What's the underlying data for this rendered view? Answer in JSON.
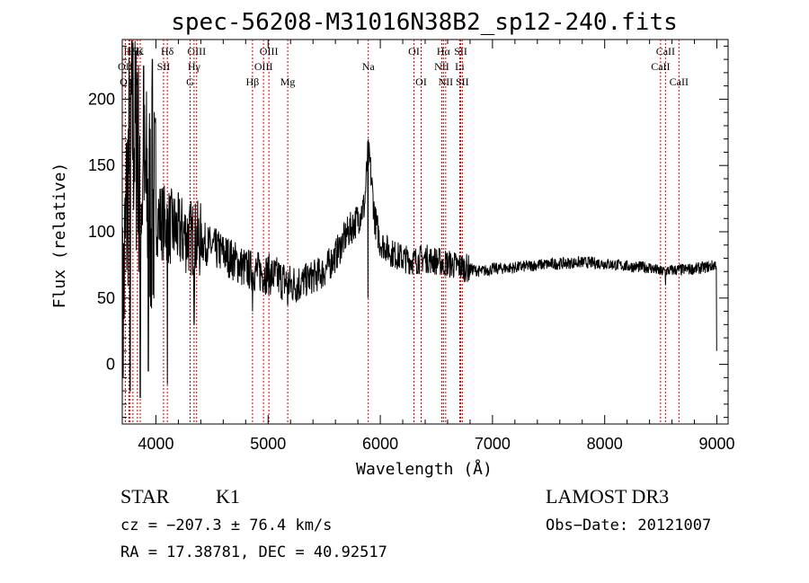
{
  "chart_data": {
    "type": "line",
    "title": "spec-56208-M31016N38B2_sp12-240.fits",
    "xlabel": "Wavelength (Å)",
    "ylabel": "Flux (relative)",
    "xlim": [
      3700,
      9100
    ],
    "ylim": [
      -45,
      245
    ],
    "xticks": [
      4000,
      5000,
      6000,
      7000,
      8000,
      9000
    ],
    "yticks": [
      0,
      50,
      100,
      150,
      200
    ],
    "line_color": "#000000",
    "marker_color": "#cc0000",
    "spectrum_nodes": [
      [
        3700,
        20
      ],
      [
        3740,
        120
      ],
      [
        3780,
        190
      ],
      [
        3820,
        170
      ],
      [
        3860,
        140
      ],
      [
        3900,
        130
      ],
      [
        3950,
        120
      ],
      [
        4000,
        112
      ],
      [
        4100,
        105
      ],
      [
        4200,
        100
      ],
      [
        4300,
        96
      ],
      [
        4400,
        93
      ],
      [
        4500,
        88
      ],
      [
        4600,
        84
      ],
      [
        4700,
        78
      ],
      [
        4800,
        72
      ],
      [
        4900,
        70
      ],
      [
        5000,
        68
      ],
      [
        5100,
        65
      ],
      [
        5200,
        60
      ],
      [
        5300,
        62
      ],
      [
        5400,
        66
      ],
      [
        5500,
        70
      ],
      [
        5600,
        82
      ],
      [
        5700,
        98
      ],
      [
        5800,
        110
      ],
      [
        5860,
        120
      ],
      [
        5890,
        160
      ],
      [
        5910,
        150
      ],
      [
        5950,
        110
      ],
      [
        6000,
        92
      ],
      [
        6100,
        84
      ],
      [
        6200,
        80
      ],
      [
        6300,
        78
      ],
      [
        6400,
        80
      ],
      [
        6500,
        78
      ],
      [
        6600,
        76
      ],
      [
        6700,
        74
      ],
      [
        6800,
        72
      ],
      [
        6900,
        70
      ],
      [
        7000,
        72
      ],
      [
        7200,
        73
      ],
      [
        7400,
        75
      ],
      [
        7600,
        76
      ],
      [
        7800,
        77
      ],
      [
        8000,
        76
      ],
      [
        8200,
        74
      ],
      [
        8400,
        73
      ],
      [
        8500,
        70
      ],
      [
        8600,
        71
      ],
      [
        8800,
        72
      ],
      [
        8950,
        74
      ],
      [
        9000,
        76
      ]
    ],
    "deep_features": [
      [
        3770,
        -20
      ],
      [
        3835,
        220
      ],
      [
        3860,
        -25
      ],
      [
        3890,
        225
      ],
      [
        3933,
        -5
      ],
      [
        3968,
        230
      ],
      [
        4102,
        -15
      ],
      [
        4340,
        30
      ],
      [
        4861,
        40
      ],
      [
        5175,
        45
      ],
      [
        5890,
        50
      ],
      [
        6563,
        70
      ],
      [
        8542,
        60
      ],
      [
        9000,
        10
      ]
    ],
    "line_markers": [
      {
        "label": "Hδ",
        "x": 3770,
        "row": 1
      },
      {
        "label": "Hζ",
        "x": 3795,
        "row": 1
      },
      {
        "label": "Hε",
        "x": 3835,
        "row": 1
      },
      {
        "label": "K",
        "x": 3860,
        "row": 1
      },
      {
        "label": "Hδ",
        "x": 4102,
        "row": 1
      },
      {
        "label": "OII",
        "x": 3727,
        "row": 2
      },
      {
        "label": "OIII",
        "x": 3760,
        "row": 3
      },
      {
        "label": "SII",
        "x": 4068,
        "row": 2
      },
      {
        "label": "OIII",
        "x": 4363,
        "row": 1
      },
      {
        "label": "Hγ",
        "x": 4340,
        "row": 2
      },
      {
        "label": "G",
        "x": 4305,
        "row": 3
      },
      {
        "label": "OIII",
        "x": 5007,
        "row": 1
      },
      {
        "label": "OIII",
        "x": 4959,
        "row": 2
      },
      {
        "label": "Hβ",
        "x": 4861,
        "row": 3
      },
      {
        "label": "Mg",
        "x": 5175,
        "row": 3
      },
      {
        "label": "Na",
        "x": 5893,
        "row": 2
      },
      {
        "label": "OI",
        "x": 6300,
        "row": 1
      },
      {
        "label": "OI",
        "x": 6364,
        "row": 3
      },
      {
        "label": "Hα",
        "x": 6563,
        "row": 1
      },
      {
        "label": "NII",
        "x": 6548,
        "row": 2
      },
      {
        "label": "NII",
        "x": 6583,
        "row": 3
      },
      {
        "label": "SII",
        "x": 6717,
        "row": 1
      },
      {
        "label": "Li",
        "x": 6708,
        "row": 2
      },
      {
        "label": "SII",
        "x": 6731,
        "row": 3
      },
      {
        "label": "CaII",
        "x": 8542,
        "row": 1
      },
      {
        "label": "CaII",
        "x": 8498,
        "row": 2
      },
      {
        "label": "CaII",
        "x": 8662,
        "row": 3
      }
    ]
  },
  "info": {
    "class_label": "STAR",
    "subclass": "K1",
    "cz": "cz = −207.3 ± 76.4 km/s",
    "coords": "RA =  17.38781, DEC =  40.92517",
    "survey": "LAMOST DR3",
    "obs_date": "Obs−Date: 20121007"
  }
}
